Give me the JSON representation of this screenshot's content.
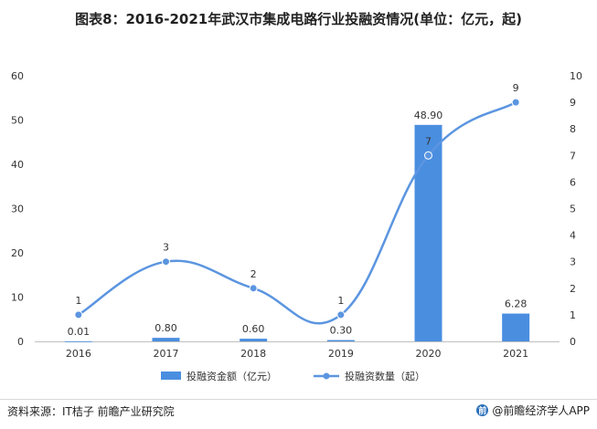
{
  "chart_data": {
    "type": "bar+line",
    "title": "图表8：2016-2021年武汉市集成电路行业投融资情况(单位：亿元，起)",
    "categories": [
      "2016",
      "2017",
      "2018",
      "2019",
      "2020",
      "2021"
    ],
    "series": [
      {
        "name": "投融资金额（亿元）",
        "type": "bar",
        "axis": "left",
        "color": "#4a8ee0",
        "values": [
          0.01,
          0.8,
          0.6,
          0.3,
          48.9,
          6.28
        ],
        "labels": [
          "0.01",
          "0.80",
          "0.60",
          "0.30",
          "48.90",
          "6.28"
        ]
      },
      {
        "name": "投融资数量（起）",
        "type": "line",
        "axis": "right",
        "color": "#5b95e0",
        "values": [
          1,
          3,
          2,
          1,
          7,
          9
        ],
        "labels": [
          "1",
          "3",
          "2",
          "1",
          "7",
          "9"
        ]
      }
    ],
    "y_left": {
      "min": 0,
      "max": 60,
      "ticks": [
        "0",
        "10",
        "20",
        "30",
        "40",
        "50",
        "60"
      ]
    },
    "y_right": {
      "min": 0,
      "max": 10,
      "ticks": [
        "0",
        "1",
        "2",
        "3",
        "4",
        "5",
        "6",
        "7",
        "8",
        "9",
        "10"
      ]
    },
    "grid": false,
    "legend_position": "bottom"
  },
  "footer": {
    "source": "资料来源：IT桔子 前瞻产业研究院",
    "brand": "@前瞻经济学人APP",
    "brand_logo": "前"
  },
  "colors": {
    "bar": "#4a8ee0",
    "line": "#5b95e0",
    "axis": "#bfbfbf",
    "text": "#333333"
  }
}
